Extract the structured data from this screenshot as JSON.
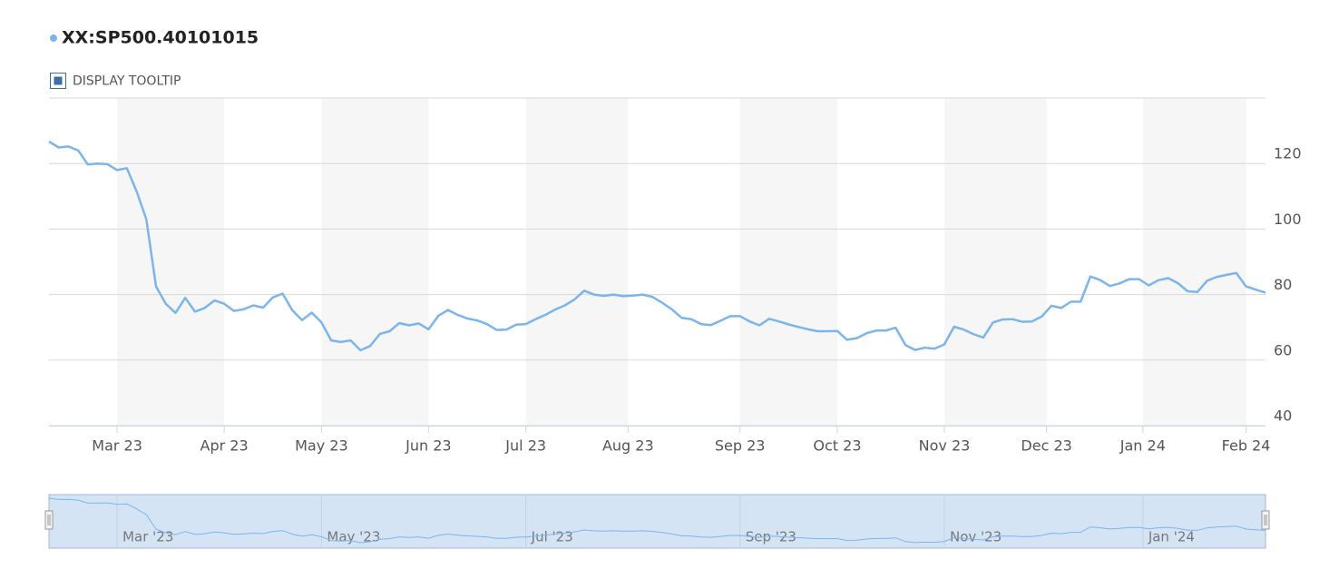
{
  "header": {
    "tooltip_toggle": "DISPLAY TOOLTIP"
  },
  "chart_data": {
    "type": "line",
    "series": [
      {
        "name": "XX:SP500.40101015",
        "color": "#7cb5ec",
        "values": [
          126.7,
          124.9,
          125.2,
          124,
          119.7,
          120,
          119.8,
          118,
          118.6,
          111.5,
          103,
          82.5,
          77.2,
          74.4,
          79,
          74.8,
          75.9,
          78.2,
          77.2,
          75,
          75.5,
          76.7,
          76,
          79.1,
          80.3,
          75.2,
          72.2,
          74.5,
          71.5,
          66,
          65.5,
          66,
          63,
          64.3,
          68,
          68.8,
          71.3,
          70.6,
          71.2,
          69.4,
          73.5,
          75.3,
          73.8,
          72.7,
          72.1,
          71,
          69.2,
          69.3,
          70.8,
          71,
          72.5,
          73.8,
          75.4,
          76.7,
          78.5,
          81.2,
          80,
          79.6,
          80,
          79.5,
          79.7,
          80,
          79.3,
          77.5,
          75.5,
          72.9,
          72.5,
          71,
          70.7,
          72,
          73.4,
          73.4,
          71.8,
          70.6,
          72.6,
          71.8,
          70.9,
          70.1,
          69.4,
          68.8,
          68.8,
          68.9,
          66.2,
          66.7,
          68.2,
          69,
          69,
          69.9,
          64.6,
          63.1,
          63.8,
          63.5,
          64.8,
          70.2,
          69.3,
          67.9,
          66.9,
          71.5,
          72.4,
          72.5,
          71.7,
          71.8,
          73.3,
          76.6,
          75.9,
          77.8,
          77.8,
          85.5,
          84.5,
          82.6,
          83.4,
          84.7,
          84.7,
          82.8,
          84.4,
          85,
          83.5,
          81,
          80.8,
          84.2,
          85.4,
          86,
          86.6,
          82.5,
          81.5,
          80.6
        ]
      }
    ],
    "xlim": [
      0,
      125
    ],
    "xticks": [
      {
        "value": 7,
        "label": "Mar 23"
      },
      {
        "value": 18,
        "label": "Apr 23"
      },
      {
        "value": 28,
        "label": "May 23"
      },
      {
        "value": 39,
        "label": "Jun 23"
      },
      {
        "value": 49,
        "label": "Jul 23"
      },
      {
        "value": 59.5,
        "label": "Aug 23"
      },
      {
        "value": 71,
        "label": "Sep 23"
      },
      {
        "value": 81,
        "label": "Oct 23"
      },
      {
        "value": 92,
        "label": "Nov 23"
      },
      {
        "value": 102.5,
        "label": "Dec 23"
      },
      {
        "value": 112.4,
        "label": "Jan 24"
      },
      {
        "value": 123,
        "label": "Feb 24"
      }
    ],
    "ylim": [
      40,
      140
    ],
    "yticks": [
      40,
      60,
      80,
      100,
      120
    ],
    "grid": true,
    "alternate_bands": true,
    "navigator": {
      "xticks": [
        {
          "value": 7,
          "label": "Mar '23"
        },
        {
          "value": 28,
          "label": "May '23"
        },
        {
          "value": 49,
          "label": "Jul '23"
        },
        {
          "value": 71,
          "label": "Sep '23"
        },
        {
          "value": 92,
          "label": "Nov '23"
        },
        {
          "value": 112.4,
          "label": "Jan '24"
        }
      ]
    }
  }
}
